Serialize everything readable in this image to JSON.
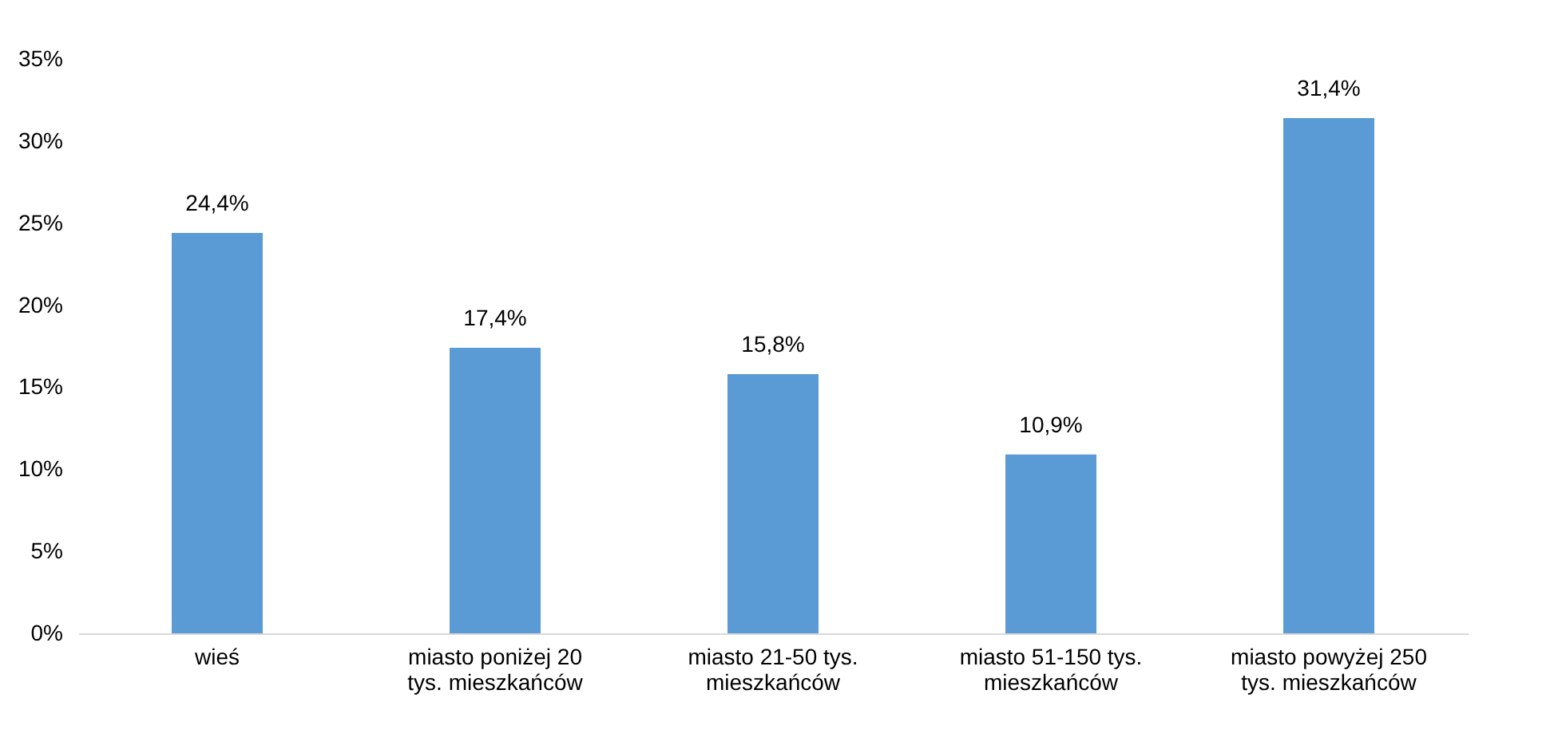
{
  "chart_data": {
    "type": "bar",
    "categories": [
      "wieś",
      "miasto poniżej 20\ntys. mieszkańców",
      "miasto 21-50 tys.\nmieszkańców",
      "miasto 51-150 tys.\nmieszkańców",
      "miasto powyżej 250\ntys. mieszkańców"
    ],
    "values": [
      24.4,
      17.4,
      15.8,
      10.9,
      31.4
    ],
    "value_labels": [
      "24,4%",
      "17,4%",
      "15,8%",
      "10,9%",
      "31,4%"
    ],
    "color": "#5b9bd5",
    "ylim": [
      0,
      35
    ],
    "yticks": [
      {
        "value": 0,
        "label": "0%"
      },
      {
        "value": 5,
        "label": "5%"
      },
      {
        "value": 10,
        "label": "10%"
      },
      {
        "value": 15,
        "label": "15%"
      },
      {
        "value": 20,
        "label": "20%"
      },
      {
        "value": 25,
        "label": "25%"
      },
      {
        "value": 30,
        "label": "30%"
      },
      {
        "value": 35,
        "label": "35%"
      }
    ],
    "grid": false
  }
}
